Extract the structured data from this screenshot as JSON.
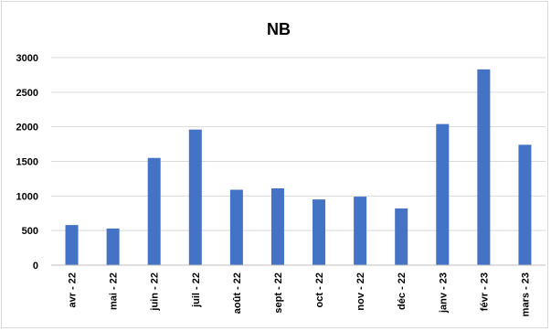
{
  "chart_data": {
    "type": "bar",
    "title": "NB",
    "xlabel": "",
    "ylabel": "",
    "categories": [
      "avr - 22",
      "mai - 22",
      "juin - 22",
      "juil - 22",
      "août - 22",
      "sept - 22",
      "oct - 22",
      "nov - 22",
      "déc - 22",
      "janv - 23",
      "févr - 23",
      "mars - 23"
    ],
    "values": [
      580,
      530,
      1550,
      1960,
      1090,
      1110,
      950,
      990,
      820,
      2040,
      2830,
      1740
    ],
    "ylim": [
      0,
      3000
    ],
    "yticks": [
      "0",
      "500",
      "1000",
      "1500",
      "2000",
      "2500",
      "3000"
    ],
    "grid": true,
    "legend": "none",
    "bar_color": "#4472C4"
  }
}
